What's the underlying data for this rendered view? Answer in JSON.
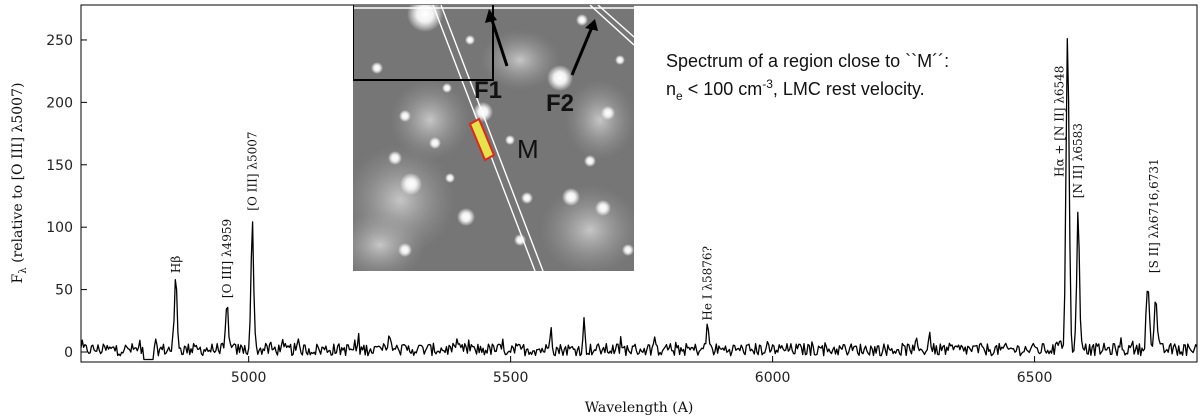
{
  "chart_data": {
    "type": "line",
    "title": "",
    "xlabel": "Wavelength (A)",
    "ylabel_main": "F",
    "ylabel_sub": "λ",
    "ylabel_rest": " (relative to [O III] λ5007)",
    "xlim": [
      4680,
      6810
    ],
    "ylim": [
      -8,
      278
    ],
    "x_ticks": [
      5000,
      5500,
      6000,
      6500
    ],
    "y_ticks": [
      0,
      50,
      100,
      150,
      200,
      250
    ],
    "baseline_noise": 5,
    "dip": {
      "start": 4800,
      "end": 4818,
      "value": -6
    },
    "lines": [
      {
        "x": 4861,
        "y": 57,
        "w": 2.6
      },
      {
        "x": 4959,
        "y": 35,
        "w": 2.6
      },
      {
        "x": 5007,
        "y": 100,
        "w": 2.6
      },
      {
        "x": 5270,
        "y": 14,
        "w": 2.0
      },
      {
        "x": 5577,
        "y": 23,
        "w": 1.8
      },
      {
        "x": 5640,
        "y": 22,
        "w": 1.8
      },
      {
        "x": 5876,
        "y": 18,
        "w": 2.6
      },
      {
        "x": 6300,
        "y": 13,
        "w": 2.0
      },
      {
        "x": 6548,
        "y": 10,
        "w": 2.6
      },
      {
        "x": 6563,
        "y": 250,
        "w": 3.0
      },
      {
        "x": 6583,
        "y": 108,
        "w": 2.6
      },
      {
        "x": 6716,
        "y": 55,
        "w": 2.8
      },
      {
        "x": 6731,
        "y": 37,
        "w": 2.8
      }
    ],
    "line_labels": [
      {
        "text": "Hβ",
        "x": 4861,
        "y": 60
      },
      {
        "text": "[O III] λ4959",
        "x": 4959,
        "y": 40
      },
      {
        "text": "[O III] λ5007",
        "x": 5007,
        "y": 110
      },
      {
        "text": "He I λ5876?",
        "x": 5876,
        "y": 22
      },
      {
        "text": "Hα + [N II] λ6548",
        "x": 6548,
        "y": 137
      },
      {
        "text": "[N II] λ6583",
        "x": 6583,
        "y": 120
      },
      {
        "text": "[S II] λλ6716,6731",
        "x": 6728,
        "y": 60
      }
    ],
    "annotation": {
      "line1": "Spectrum of a region close to ``M´´:",
      "line2_pre": "n",
      "line2_sub": "e",
      "line2_mid": " < 100 cm",
      "line2_sup": "-3",
      "line2_post": ", LMC rest velocity."
    }
  },
  "inset": {
    "labels": {
      "f1": "F1",
      "f2": "F2",
      "m": "M"
    }
  }
}
